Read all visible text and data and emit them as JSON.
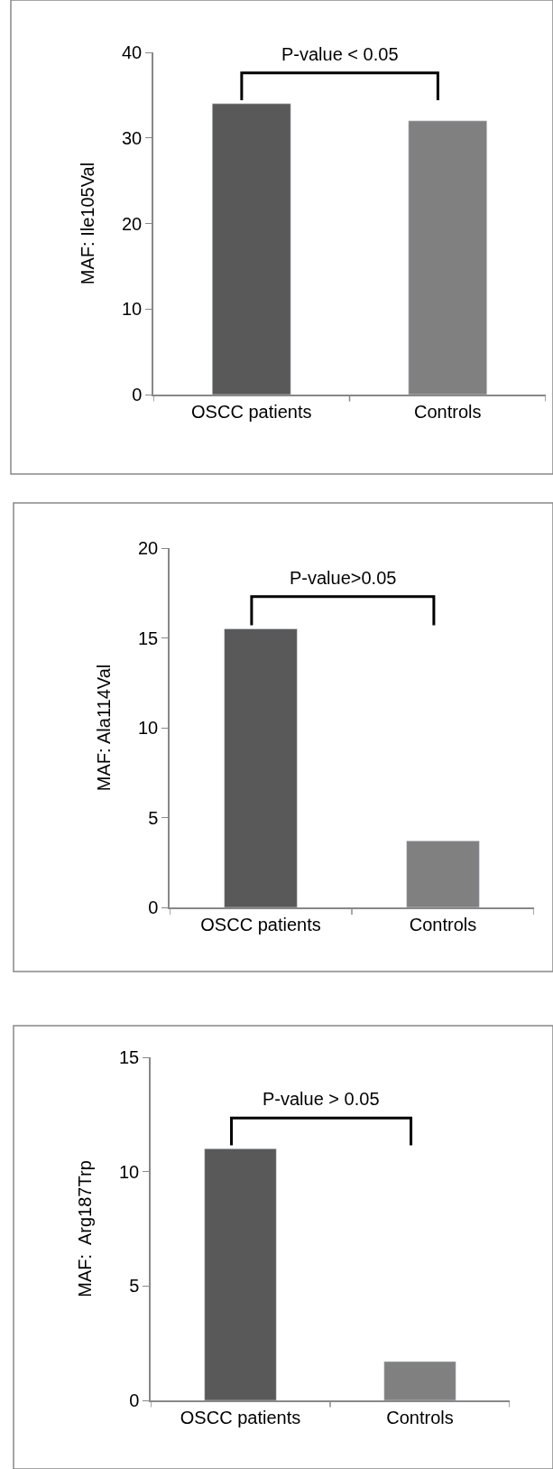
{
  "chart_data": [
    {
      "type": "bar",
      "categories": [
        "OSCC patients",
        "Controls"
      ],
      "values": [
        34,
        32
      ],
      "colors": [
        "#595959",
        "#808080"
      ],
      "ylabel": "MAF: Ile105Val",
      "ylim": [
        0,
        40
      ],
      "yticks": [
        0,
        10,
        20,
        30,
        40
      ],
      "grid": false,
      "annotations": [
        "P-value < 0.05"
      ]
    },
    {
      "type": "bar",
      "categories": [
        "OSCC patients",
        "Controls"
      ],
      "values": [
        15.5,
        3.7
      ],
      "colors": [
        "#595959",
        "#808080"
      ],
      "ylabel": "MAF: Ala114Val",
      "ylim": [
        0,
        20
      ],
      "yticks": [
        0,
        5,
        10,
        15,
        20
      ],
      "grid": false,
      "annotations": [
        "P-value>0.05"
      ]
    },
    {
      "type": "bar",
      "categories": [
        "OSCC patients",
        "Controls"
      ],
      "values": [
        11,
        1.7
      ],
      "colors": [
        "#595959",
        "#808080"
      ],
      "ylabel": "MAF:  Arg187Trp",
      "ylim": [
        0,
        15
      ],
      "yticks": [
        0,
        5,
        10,
        15
      ],
      "grid": false,
      "annotations": [
        "P-value > 0.05"
      ]
    }
  ]
}
